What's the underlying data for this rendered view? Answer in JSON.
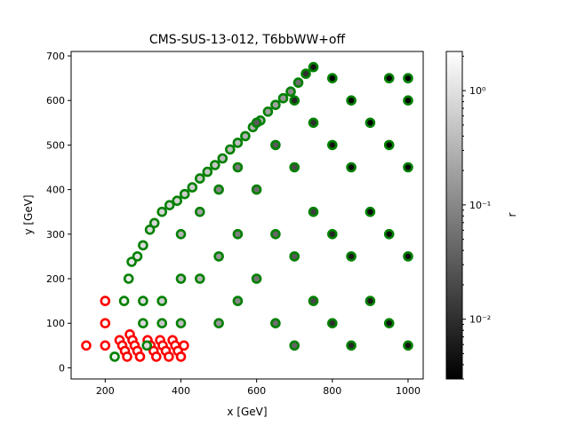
{
  "chart_data": {
    "type": "scatter",
    "title": "CMS-SUS-13-012, T6bbWW+off",
    "xlabel": "x [GeV]",
    "ylabel": "y [GeV]",
    "xlim": [
      110,
      1040
    ],
    "ylim": [
      -25,
      710
    ],
    "x_ticks": [
      200,
      400,
      600,
      800,
      1000
    ],
    "y_ticks": [
      0,
      100,
      200,
      300,
      400,
      500,
      600,
      700
    ],
    "x_tick_labels": [
      "200",
      "400",
      "600",
      "800",
      "1000"
    ],
    "y_tick_labels": [
      "0",
      "100",
      "200",
      "300",
      "400",
      "500",
      "600",
      "700"
    ],
    "colorbar": {
      "label": "r",
      "scale": "log",
      "range": [
        0.003,
        2.2
      ],
      "colormap": "gray",
      "tick_values": [
        0.01,
        0.1,
        1
      ],
      "tick_labels": [
        "10⁻²",
        "10⁻¹",
        "10⁰"
      ]
    },
    "edge_colors": {
      "allowed": "#008000",
      "excluded": "#ff0000"
    },
    "legend": "none",
    "grid": false,
    "series": [
      {
        "status": "excluded",
        "points": [
          [
            150,
            50
          ],
          [
            200,
            150
          ],
          [
            200,
            100
          ],
          [
            200,
            50
          ],
          [
            238,
            62
          ],
          [
            245,
            50
          ],
          [
            252,
            38
          ],
          [
            258,
            25
          ],
          [
            265,
            75
          ],
          [
            272,
            62
          ],
          [
            278,
            50
          ],
          [
            285,
            38
          ],
          [
            292,
            25
          ],
          [
            312,
            62
          ],
          [
            320,
            50
          ],
          [
            328,
            38
          ],
          [
            335,
            25
          ],
          [
            345,
            62
          ],
          [
            352,
            50
          ],
          [
            360,
            38
          ],
          [
            368,
            25
          ],
          [
            378,
            62
          ],
          [
            385,
            50
          ],
          [
            392,
            38
          ],
          [
            400,
            25
          ],
          [
            408,
            50
          ]
        ]
      },
      {
        "status": "allowed",
        "description": "dense grid of points, each with a fill colour given by r",
        "points": [
          [
            225,
            25,
            1.5
          ],
          [
            250,
            150,
            1.4
          ],
          [
            262,
            200,
            1.3
          ],
          [
            270,
            238,
            1.2
          ],
          [
            285,
            250,
            1.1
          ],
          [
            300,
            275,
            0.9
          ],
          [
            318,
            310,
            0.8
          ],
          [
            330,
            325,
            0.8
          ],
          [
            350,
            350,
            0.7
          ],
          [
            370,
            365,
            0.7
          ],
          [
            390,
            375,
            0.7
          ],
          [
            410,
            390,
            0.6
          ],
          [
            430,
            405,
            0.6
          ],
          [
            450,
            425,
            0.5
          ],
          [
            470,
            440,
            0.5
          ],
          [
            490,
            455,
            0.5
          ],
          [
            510,
            470,
            0.4
          ],
          [
            530,
            490,
            0.4
          ],
          [
            550,
            505,
            0.4
          ],
          [
            570,
            520,
            0.3
          ],
          [
            590,
            540,
            0.3
          ],
          [
            610,
            555,
            0.3
          ],
          [
            630,
            575,
            0.2
          ],
          [
            650,
            590,
            0.2
          ],
          [
            670,
            605,
            0.15
          ],
          [
            690,
            620,
            0.1
          ],
          [
            710,
            640,
            0.05
          ],
          [
            730,
            660,
            0.01
          ],
          [
            750,
            675,
            0.005
          ],
          [
            300,
            150,
            0.9
          ],
          [
            300,
            100,
            0.8
          ],
          [
            310,
            50,
            0.9
          ],
          [
            350,
            150,
            0.6
          ],
          [
            350,
            100,
            0.5
          ],
          [
            400,
            100,
            0.4
          ],
          [
            400,
            200,
            0.4
          ],
          [
            400,
            300,
            0.3
          ],
          [
            450,
            200,
            0.3
          ],
          [
            450,
            350,
            0.2
          ],
          [
            500,
            100,
            0.15
          ],
          [
            500,
            250,
            0.15
          ],
          [
            500,
            400,
            0.1
          ],
          [
            550,
            150,
            0.1
          ],
          [
            550,
            300,
            0.08
          ],
          [
            550,
            450,
            0.07
          ],
          [
            600,
            200,
            0.06
          ],
          [
            600,
            400,
            0.05
          ],
          [
            600,
            550,
            0.03
          ],
          [
            650,
            100,
            0.05
          ],
          [
            650,
            300,
            0.04
          ],
          [
            650,
            500,
            0.03
          ],
          [
            700,
            50,
            0.04
          ],
          [
            700,
            250,
            0.03
          ],
          [
            700,
            450,
            0.02
          ],
          [
            700,
            600,
            0.008
          ],
          [
            750,
            150,
            0.02
          ],
          [
            750,
            350,
            0.015
          ],
          [
            750,
            550,
            0.01
          ],
          [
            800,
            100,
            0.01
          ],
          [
            800,
            300,
            0.008
          ],
          [
            800,
            500,
            0.005
          ],
          [
            800,
            650,
            0.003
          ],
          [
            850,
            50,
            0.008
          ],
          [
            850,
            250,
            0.006
          ],
          [
            850,
            450,
            0.004
          ],
          [
            850,
            600,
            0.003
          ],
          [
            900,
            150,
            0.006
          ],
          [
            900,
            350,
            0.004
          ],
          [
            900,
            550,
            0.003
          ],
          [
            950,
            100,
            0.005
          ],
          [
            950,
            300,
            0.004
          ],
          [
            950,
            500,
            0.003
          ],
          [
            950,
            650,
            0.003
          ],
          [
            1000,
            50,
            0.005
          ],
          [
            1000,
            250,
            0.004
          ],
          [
            1000,
            450,
            0.003
          ],
          [
            1000,
            600,
            0.003
          ],
          [
            1000,
            650,
            0.003
          ]
        ]
      }
    ]
  }
}
